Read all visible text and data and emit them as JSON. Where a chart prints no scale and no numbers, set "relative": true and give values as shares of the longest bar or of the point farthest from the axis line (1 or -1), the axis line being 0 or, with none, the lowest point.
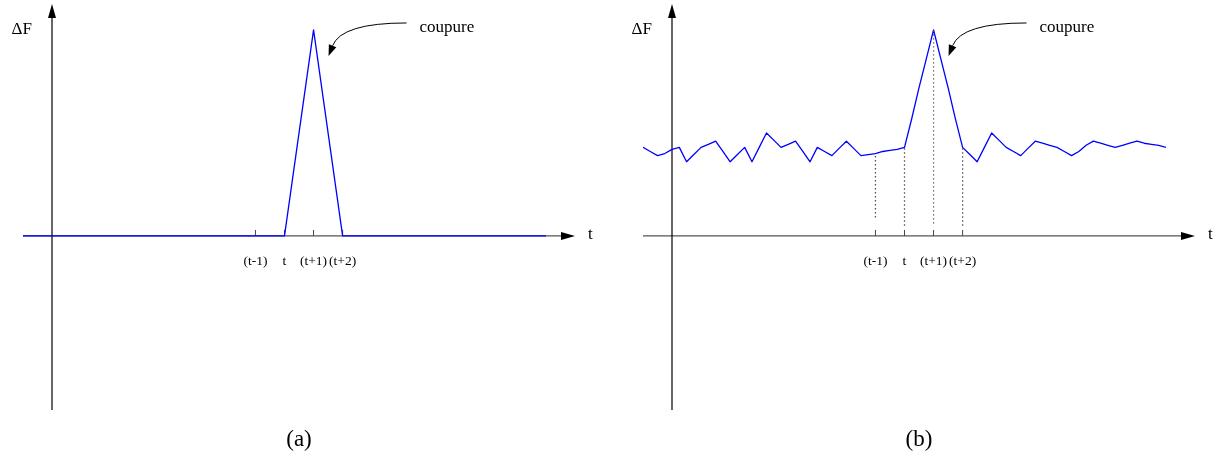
{
  "chart_data": [
    {
      "type": "line",
      "title": "(a)",
      "xlabel": "t",
      "ylabel": "ΔF",
      "relative": true,
      "categories": [
        null,
        null,
        null,
        null,
        null,
        null,
        null,
        null,
        "(t-1)",
        "t",
        "(t+1)",
        "(t+2)",
        null,
        null,
        null,
        null,
        null,
        null,
        null
      ],
      "series": [
        {
          "color": "#0000ff",
          "values": [
            0,
            0,
            0,
            0,
            0,
            0,
            0,
            0,
            0,
            0,
            1,
            0,
            0,
            0,
            0,
            0,
            0,
            0,
            0
          ]
        }
      ],
      "annotations": [
        "coupure"
      ]
    },
    {
      "type": "line",
      "title": "(b)",
      "xlabel": "t",
      "ylabel": "ΔF",
      "relative": true,
      "categories": [
        null,
        null,
        null,
        null,
        null,
        null,
        null,
        null,
        null,
        null,
        null,
        null,
        null,
        null,
        null,
        null,
        null,
        null,
        null,
        null,
        null,
        null,
        null,
        null,
        null,
        null,
        null,
        null,
        null,
        null,
        null,
        null,
        "(t-1)",
        null,
        null,
        null,
        "t",
        null,
        null,
        null,
        "(t+1)",
        null,
        null,
        null,
        "(t+2)",
        null,
        null,
        null,
        null,
        null,
        null,
        null,
        null,
        null,
        null,
        null,
        null,
        null,
        null,
        null,
        null,
        null,
        null,
        null,
        null,
        null,
        null,
        null,
        null,
        null,
        null,
        null,
        null
      ],
      "series": [
        {
          "color": "#0000ff",
          "values": [
            0.43,
            0.41,
            0.39,
            0.4,
            0.42,
            0.43,
            0.36,
            0.395,
            0.43,
            0.445,
            0.46,
            0.41,
            0.36,
            0.395,
            0.43,
            0.36,
            0.43,
            0.5,
            0.465,
            0.43,
            0.445,
            0.46,
            0.41,
            0.36,
            0.43,
            0.41,
            0.39,
            0.425,
            0.46,
            0.425,
            0.39,
            0.395,
            0.4,
            0.41,
            0.415,
            0.42,
            0.43,
            0.57,
            0.72,
            0.86,
            1,
            0.86,
            0.72,
            0.57,
            0.43,
            0.395,
            0.36,
            0.43,
            0.5,
            0.465,
            0.43,
            0.41,
            0.39,
            0.425,
            0.46,
            0.45,
            0.44,
            0.43,
            0.41,
            0.39,
            0.41,
            0.44,
            0.46,
            0.45,
            0.44,
            0.43,
            0.44,
            0.45,
            0.46,
            0.45,
            0.445,
            0.44,
            0.43
          ]
        },
        {
          "color": "#555555",
          "line_style": "dotted",
          "x": [
            "(t-1)",
            "(t-1)"
          ],
          "values": [
            0.09,
            0.4
          ]
        },
        {
          "color": "#555555",
          "line_style": "dotted",
          "x": [
            "t",
            "t"
          ],
          "values": [
            0.05,
            0.43
          ]
        },
        {
          "color": "#555555",
          "line_style": "dotted",
          "x": [
            "(t+1)",
            "(t+1)"
          ],
          "values": [
            0.06,
            1
          ]
        },
        {
          "color": "#555555",
          "line_style": "dotted",
          "x": [
            "(t+2)",
            "(t+2)"
          ],
          "values": [
            0.05,
            0.43
          ]
        }
      ],
      "annotations": [
        "coupure"
      ]
    }
  ]
}
